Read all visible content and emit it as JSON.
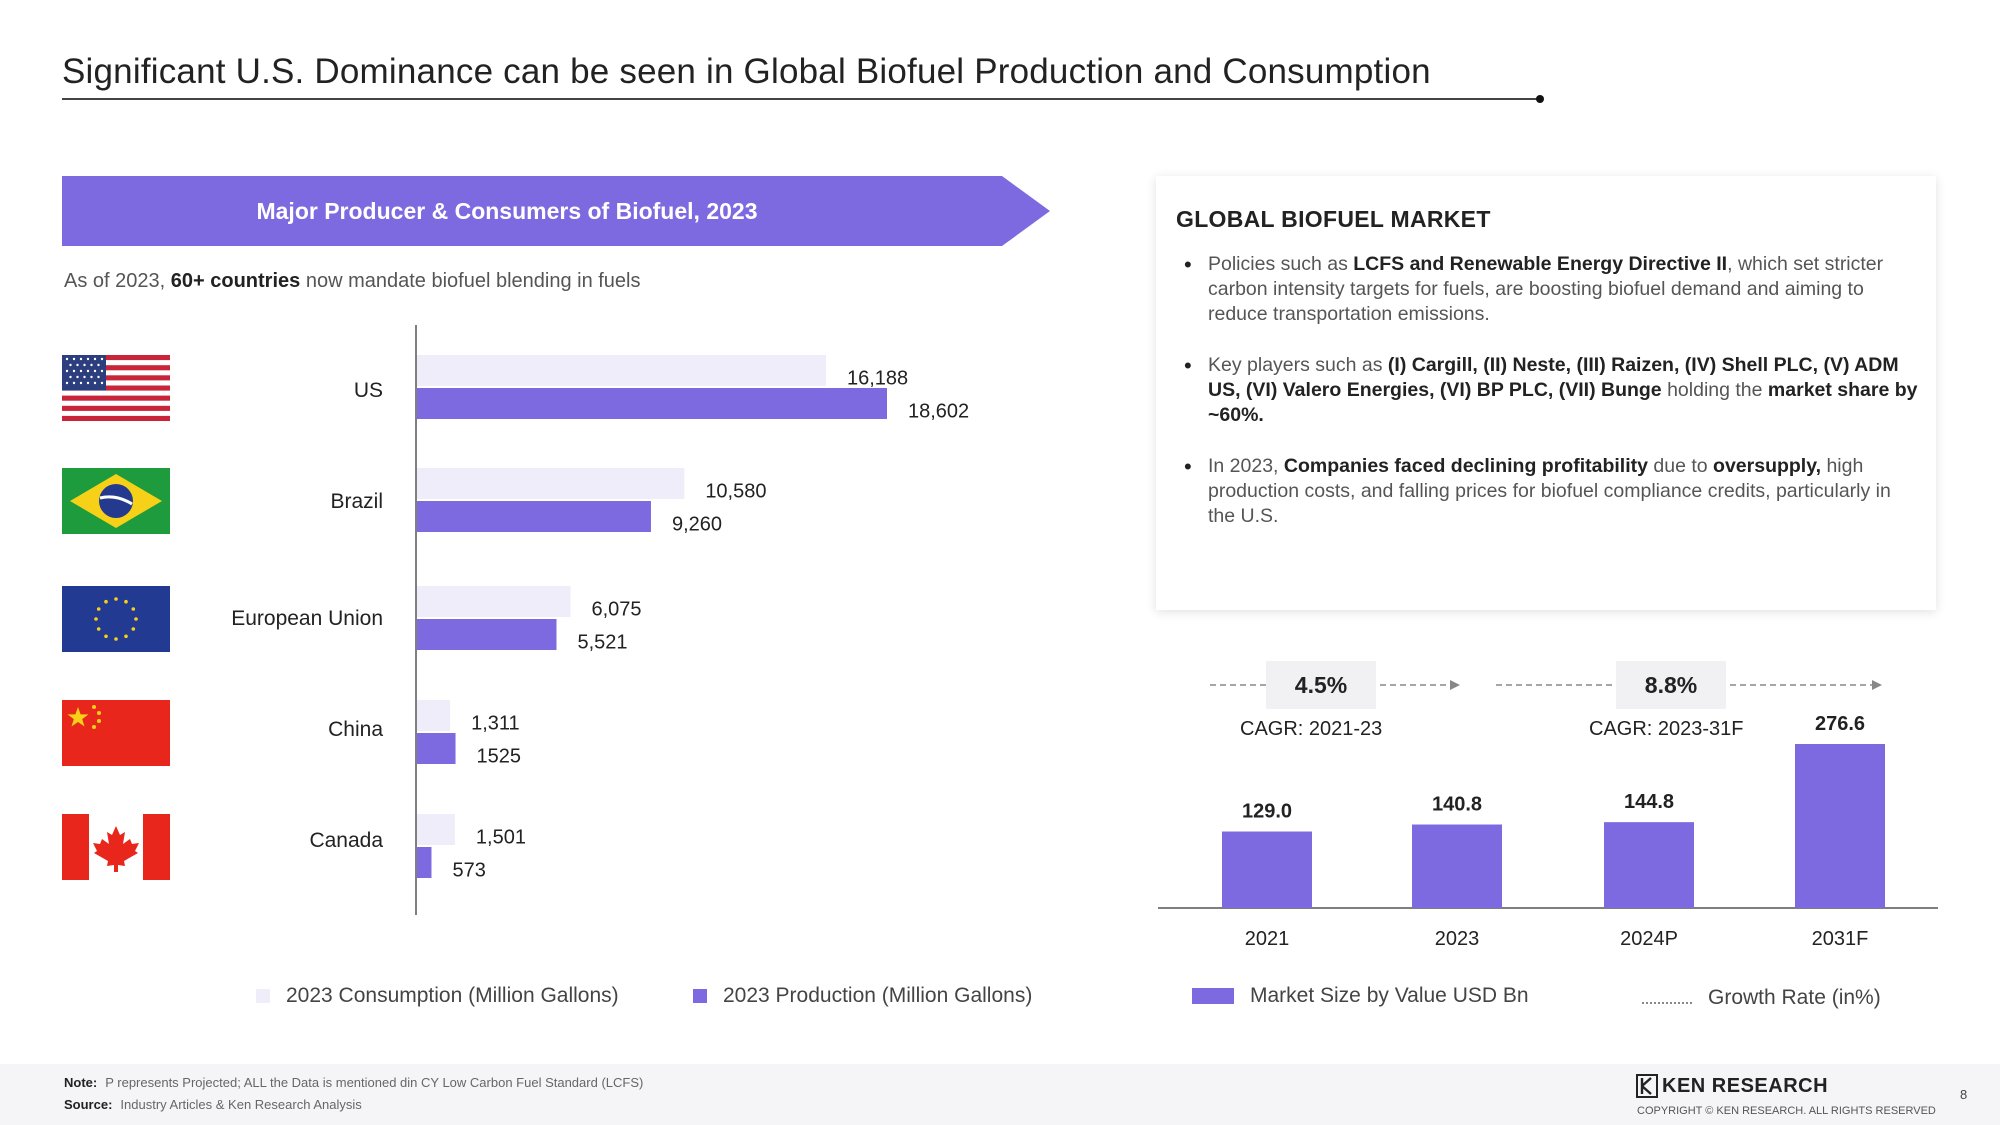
{
  "page": {
    "title": "Significant U.S. Dominance can be seen in Global Biofuel Production and Consumption",
    "page_number": "8"
  },
  "left_panel": {
    "banner": "Major Producer & Consumers of Biofuel, 2023",
    "subtitle_pre": "As of 2023, ",
    "subtitle_bold": "60+ countries",
    "subtitle_post": " now mandate biofuel blending in fuels",
    "flags": [
      "us-flag-icon",
      "brazil-flag-icon",
      "eu-flag-icon",
      "china-flag-icon",
      "canada-flag-icon"
    ]
  },
  "info_box": {
    "title": "GLOBAL BIOFUEL MARKET",
    "bullets": [
      {
        "pre": "Policies such as ",
        "bold": "LCFS and Renewable Energy Directive II",
        "post": ", which set stricter carbon intensity targets for fuels, are boosting biofuel demand and aiming to reduce transportation emissions."
      },
      {
        "pre": "Key players such as ",
        "bold": "(I) Cargill, (II) Neste, (III) Raizen, (IV) Shell PLC, (V) ADM US, (VI) Valero Energies,  (VI) BP PLC,  (VII) Bunge",
        "post": " holding the ",
        "bold2": "market share by ~60%."
      },
      {
        "pre": "In 2023, ",
        "bold": "Companies faced declining profitability",
        "mid": " due to ",
        "bold2": "oversupply,",
        "post": " high production costs, and falling prices for biofuel compliance credits, particularly in the U.S."
      }
    ]
  },
  "cagr": [
    {
      "value": "4.5%",
      "label": "CAGR: 2021-23"
    },
    {
      "value": "8.8%",
      "label": "CAGR: 2023-31F"
    }
  ],
  "chart_data": [
    {
      "type": "bar",
      "orientation": "horizontal",
      "title": "Major Producer & Consumers of Biofuel, 2023",
      "categories": [
        "US",
        "Brazil",
        "European Union",
        "China",
        "Canada"
      ],
      "series": [
        {
          "name": "2023 Consumption (Million Gallons)",
          "values": [
            16188,
            10580,
            6075,
            1311,
            1501
          ],
          "labels": [
            "16,188",
            "10,580",
            "6,075",
            "1,311",
            "1,501"
          ],
          "color": "#eeedf9"
        },
        {
          "name": "2023 Production (Million Gallons)",
          "values": [
            18602,
            9260,
            5521,
            1525,
            573
          ],
          "labels": [
            "18,602",
            "9,260",
            "5,521",
            "1525",
            "573"
          ],
          "color": "#7d6ae0"
        }
      ],
      "xlim": [
        0,
        21000
      ],
      "legend_position": "bottom"
    },
    {
      "type": "bar",
      "categories": [
        "2021",
        "2023",
        "2024P",
        "2031F"
      ],
      "series": [
        {
          "name": "Market Size by Value USD Bn",
          "values": [
            129.0,
            140.8,
            144.8,
            276.6
          ],
          "labels": [
            "129.0",
            "140.8",
            "144.8",
            "276.6"
          ],
          "color": "#7d6ae0"
        }
      ],
      "secondary_legend": "Growth Rate (in%)",
      "ylim": [
        0,
        300
      ],
      "legend_position": "bottom"
    }
  ],
  "footer": {
    "note_label": "Note:",
    "note_text": "P represents Projected; ALL the Data is mentioned din CY Low Carbon Fuel Standard (LCFS)",
    "source_label": "Source:",
    "source_text": "Industry Articles & Ken Research Analysis",
    "brand": "KEN RESEARCH",
    "copyright": "COPYRIGHT © KEN RESEARCH. ALL RIGHTS RESERVED"
  },
  "colors": {
    "accent": "#7d6ae0",
    "consumption": "#eeedf9"
  }
}
